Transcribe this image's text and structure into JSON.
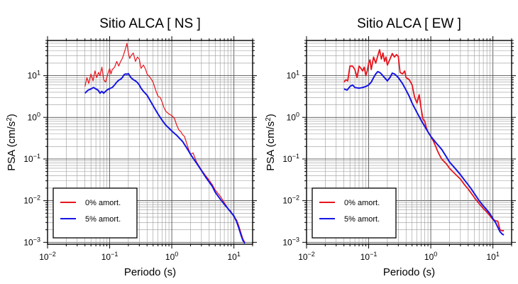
{
  "chart_data": [
    {
      "type": "line",
      "title": "Sitio ALCA [ NS ]",
      "xlabel": "Periodo (s)",
      "ylabel_main": "PSA (cm/s",
      "ylabel_sup": "2",
      "ylabel_end": ")",
      "xscale": "log",
      "yscale": "log",
      "xlim": [
        0.01,
        20
      ],
      "ylim": [
        0.0009,
        70
      ],
      "grid": true,
      "legend_position": "bottom-left",
      "x_ticks": [
        {
          "base": "10",
          "exp": "−2",
          "value": 0.01
        },
        {
          "base": "10",
          "exp": "−1",
          "value": 0.1
        },
        {
          "base": "10",
          "exp": "0",
          "value": 1
        },
        {
          "base": "10",
          "exp": "1",
          "value": 10
        }
      ],
      "y_ticks": [
        {
          "base": "10",
          "exp": "−3",
          "value": 0.001
        },
        {
          "base": "10",
          "exp": "−2",
          "value": 0.01
        },
        {
          "base": "10",
          "exp": "−1",
          "value": 0.1
        },
        {
          "base": "10",
          "exp": "0",
          "value": 1
        },
        {
          "base": "10",
          "exp": "1",
          "value": 10
        }
      ],
      "series": [
        {
          "name": "0% amort.",
          "color": "#e8141c",
          "points": [
            [
              0.04,
              5.5
            ],
            [
              0.043,
              9
            ],
            [
              0.046,
              6.5
            ],
            [
              0.05,
              11
            ],
            [
              0.054,
              7.5
            ],
            [
              0.058,
              13
            ],
            [
              0.062,
              9
            ],
            [
              0.066,
              12
            ],
            [
              0.07,
              10
            ],
            [
              0.075,
              16
            ],
            [
              0.08,
              8
            ],
            [
              0.086,
              7
            ],
            [
              0.09,
              9
            ],
            [
              0.095,
              12
            ],
            [
              0.1,
              15
            ],
            [
              0.105,
              11
            ],
            [
              0.11,
              14
            ],
            [
              0.12,
              16
            ],
            [
              0.13,
              22
            ],
            [
              0.14,
              17
            ],
            [
              0.15,
              22
            ],
            [
              0.16,
              26
            ],
            [
              0.17,
              34
            ],
            [
              0.18,
              45
            ],
            [
              0.19,
              60
            ],
            [
              0.2,
              35
            ],
            [
              0.21,
              26
            ],
            [
              0.22,
              30
            ],
            [
              0.24,
              35
            ],
            [
              0.26,
              22
            ],
            [
              0.28,
              28
            ],
            [
              0.3,
              25
            ],
            [
              0.32,
              15
            ],
            [
              0.35,
              18
            ],
            [
              0.38,
              14
            ],
            [
              0.4,
              11
            ],
            [
              0.45,
              9
            ],
            [
              0.5,
              7
            ],
            [
              0.55,
              4.5
            ],
            [
              0.6,
              3.2
            ],
            [
              0.65,
              3
            ],
            [
              0.7,
              2.3
            ],
            [
              0.75,
              1.7
            ],
            [
              0.8,
              1.4
            ],
            [
              0.9,
              1.2
            ],
            [
              1.0,
              1.1
            ],
            [
              1.1,
              0.95
            ],
            [
              1.2,
              0.65
            ],
            [
              1.3,
              0.5
            ],
            [
              1.4,
              0.45
            ],
            [
              1.5,
              0.38
            ],
            [
              1.6,
              0.35
            ],
            [
              1.8,
              0.2
            ],
            [
              2.0,
              0.13
            ],
            [
              2.2,
              0.14
            ],
            [
              2.5,
              0.085
            ],
            [
              3,
              0.055
            ],
            [
              3.5,
              0.04
            ],
            [
              4,
              0.031
            ],
            [
              4.5,
              0.024
            ],
            [
              5,
              0.018
            ],
            [
              6,
              0.013
            ],
            [
              7,
              0.009
            ],
            [
              8,
              0.0065
            ],
            [
              9,
              0.0055
            ],
            [
              10,
              0.004
            ],
            [
              11,
              0.0035
            ],
            [
              12,
              0.0025
            ],
            [
              13,
              0.0017
            ],
            [
              14,
              0.0012
            ],
            [
              15,
              0.001
            ]
          ]
        },
        {
          "name": "5% amort.",
          "color": "#1414e6",
          "points": [
            [
              0.04,
              3.8
            ],
            [
              0.045,
              4.5
            ],
            [
              0.05,
              4.8
            ],
            [
              0.055,
              5.2
            ],
            [
              0.06,
              4.8
            ],
            [
              0.065,
              4.5
            ],
            [
              0.07,
              3.8
            ],
            [
              0.075,
              4.2
            ],
            [
              0.08,
              3.8
            ],
            [
              0.09,
              4.5
            ],
            [
              0.1,
              4.9
            ],
            [
              0.11,
              5.2
            ],
            [
              0.12,
              6
            ],
            [
              0.13,
              7
            ],
            [
              0.14,
              7.8
            ],
            [
              0.15,
              8.2
            ],
            [
              0.16,
              9
            ],
            [
              0.17,
              10.5
            ],
            [
              0.18,
              11
            ],
            [
              0.19,
              10.8
            ],
            [
              0.2,
              11.2
            ],
            [
              0.21,
              10
            ],
            [
              0.22,
              9
            ],
            [
              0.24,
              8
            ],
            [
              0.26,
              7.5
            ],
            [
              0.28,
              6.8
            ],
            [
              0.3,
              6
            ],
            [
              0.32,
              5
            ],
            [
              0.35,
              4.2
            ],
            [
              0.4,
              3.4
            ],
            [
              0.45,
              2.5
            ],
            [
              0.5,
              1.9
            ],
            [
              0.6,
              1.2
            ],
            [
              0.7,
              0.85
            ],
            [
              0.8,
              0.65
            ],
            [
              0.9,
              0.55
            ],
            [
              1.0,
              0.47
            ],
            [
              1.2,
              0.37
            ],
            [
              1.5,
              0.26
            ],
            [
              1.8,
              0.17
            ],
            [
              2.0,
              0.13
            ],
            [
              2.5,
              0.08
            ],
            [
              3,
              0.053
            ],
            [
              3.5,
              0.037
            ],
            [
              4,
              0.028
            ],
            [
              4.5,
              0.022
            ],
            [
              5,
              0.016
            ],
            [
              6,
              0.011
            ],
            [
              7,
              0.0082
            ],
            [
              8,
              0.0065
            ],
            [
              9,
              0.0052
            ],
            [
              10,
              0.0043
            ],
            [
              11,
              0.0032
            ],
            [
              12,
              0.0022
            ],
            [
              13,
              0.0015
            ],
            [
              14,
              0.0011
            ],
            [
              15,
              0.00095
            ]
          ]
        }
      ]
    },
    {
      "type": "line",
      "title": "Sitio ALCA [ EW ]",
      "xlabel": "Periodo (s)",
      "ylabel_main": "PSA (cm/s",
      "ylabel_sup": "2",
      "ylabel_end": ")",
      "xscale": "log",
      "yscale": "log",
      "xlim": [
        0.01,
        20
      ],
      "ylim": [
        0.0009,
        70
      ],
      "grid": true,
      "legend_position": "bottom-left",
      "x_ticks": [
        {
          "base": "10",
          "exp": "−2",
          "value": 0.01
        },
        {
          "base": "10",
          "exp": "−1",
          "value": 0.1
        },
        {
          "base": "10",
          "exp": "0",
          "value": 1
        },
        {
          "base": "10",
          "exp": "1",
          "value": 10
        }
      ],
      "y_ticks": [
        {
          "base": "10",
          "exp": "−3",
          "value": 0.001
        },
        {
          "base": "10",
          "exp": "−2",
          "value": 0.01
        },
        {
          "base": "10",
          "exp": "−1",
          "value": 0.1
        },
        {
          "base": "10",
          "exp": "0",
          "value": 1
        },
        {
          "base": "10",
          "exp": "1",
          "value": 10
        }
      ],
      "series": [
        {
          "name": "0% amort.",
          "color": "#e8141c",
          "points": [
            [
              0.04,
              7
            ],
            [
              0.043,
              8
            ],
            [
              0.046,
              7.5
            ],
            [
              0.05,
              17
            ],
            [
              0.055,
              17
            ],
            [
              0.06,
              14
            ],
            [
              0.065,
              9
            ],
            [
              0.07,
              17
            ],
            [
              0.075,
              15
            ],
            [
              0.08,
              13
            ],
            [
              0.085,
              16
            ],
            [
              0.09,
              10
            ],
            [
              0.095,
              13
            ],
            [
              0.1,
              20
            ],
            [
              0.105,
              24
            ],
            [
              0.11,
              14
            ],
            [
              0.12,
              28
            ],
            [
              0.13,
              20
            ],
            [
              0.14,
              30
            ],
            [
              0.15,
              42
            ],
            [
              0.16,
              25
            ],
            [
              0.17,
              35
            ],
            [
              0.18,
              22
            ],
            [
              0.19,
              28
            ],
            [
              0.2,
              18
            ],
            [
              0.22,
              25
            ],
            [
              0.24,
              34
            ],
            [
              0.26,
              28
            ],
            [
              0.28,
              32
            ],
            [
              0.3,
              29
            ],
            [
              0.32,
              12
            ],
            [
              0.35,
              11
            ],
            [
              0.38,
              13
            ],
            [
              0.4,
              9
            ],
            [
              0.45,
              8
            ],
            [
              0.5,
              6
            ],
            [
              0.55,
              3
            ],
            [
              0.6,
              2.2
            ],
            [
              0.65,
              3.5
            ],
            [
              0.7,
              1.6
            ],
            [
              0.75,
              0.9
            ],
            [
              0.8,
              0.8
            ],
            [
              0.85,
              0.55
            ],
            [
              0.9,
              0.45
            ],
            [
              1.0,
              0.35
            ],
            [
              1.1,
              0.27
            ],
            [
              1.2,
              0.2
            ],
            [
              1.3,
              0.15
            ],
            [
              1.4,
              0.12
            ],
            [
              1.5,
              0.1
            ],
            [
              1.8,
              0.075
            ],
            [
              2.0,
              0.06
            ],
            [
              2.5,
              0.043
            ],
            [
              3,
              0.033
            ],
            [
              3.5,
              0.024
            ],
            [
              4,
              0.019
            ],
            [
              4.5,
              0.015
            ],
            [
              5,
              0.012
            ],
            [
              6,
              0.0085
            ],
            [
              7,
              0.0065
            ],
            [
              8,
              0.0053
            ],
            [
              9,
              0.0043
            ],
            [
              10,
              0.0035
            ],
            [
              11,
              0.0033
            ],
            [
              12,
              0.0032
            ],
            [
              13,
              0.002
            ],
            [
              14,
              0.0019
            ],
            [
              15,
              0.0019
            ]
          ]
        },
        {
          "name": "5% amort.",
          "color": "#1414e6",
          "points": [
            [
              0.04,
              4.8
            ],
            [
              0.045,
              4.5
            ],
            [
              0.05,
              5.5
            ],
            [
              0.055,
              6
            ],
            [
              0.06,
              5.2
            ],
            [
              0.07,
              5
            ],
            [
              0.08,
              5.2
            ],
            [
              0.09,
              5.5
            ],
            [
              0.1,
              6
            ],
            [
              0.11,
              7
            ],
            [
              0.12,
              9
            ],
            [
              0.13,
              11
            ],
            [
              0.14,
              12.5
            ],
            [
              0.15,
              12
            ],
            [
              0.16,
              11
            ],
            [
              0.18,
              9
            ],
            [
              0.2,
              7.5
            ],
            [
              0.22,
              9
            ],
            [
              0.24,
              11.5
            ],
            [
              0.26,
              11
            ],
            [
              0.28,
              10
            ],
            [
              0.3,
              9
            ],
            [
              0.35,
              6.5
            ],
            [
              0.4,
              4.5
            ],
            [
              0.45,
              3.2
            ],
            [
              0.5,
              2.2
            ],
            [
              0.6,
              1.3
            ],
            [
              0.7,
              0.85
            ],
            [
              0.8,
              0.6
            ],
            [
              0.9,
              0.45
            ],
            [
              1.0,
              0.35
            ],
            [
              1.2,
              0.25
            ],
            [
              1.5,
              0.17
            ],
            [
              1.8,
              0.11
            ],
            [
              2.0,
              0.085
            ],
            [
              2.5,
              0.058
            ],
            [
              3,
              0.042
            ],
            [
              3.5,
              0.031
            ],
            [
              4,
              0.024
            ],
            [
              4.5,
              0.019
            ],
            [
              5,
              0.015
            ],
            [
              6,
              0.01
            ],
            [
              7,
              0.0075
            ],
            [
              8,
              0.006
            ],
            [
              9,
              0.0048
            ],
            [
              10,
              0.0037
            ],
            [
              11,
              0.003
            ],
            [
              12,
              0.0023
            ],
            [
              13,
              0.0018
            ],
            [
              14,
              0.0016
            ],
            [
              15,
              0.0015
            ]
          ]
        }
      ]
    }
  ]
}
